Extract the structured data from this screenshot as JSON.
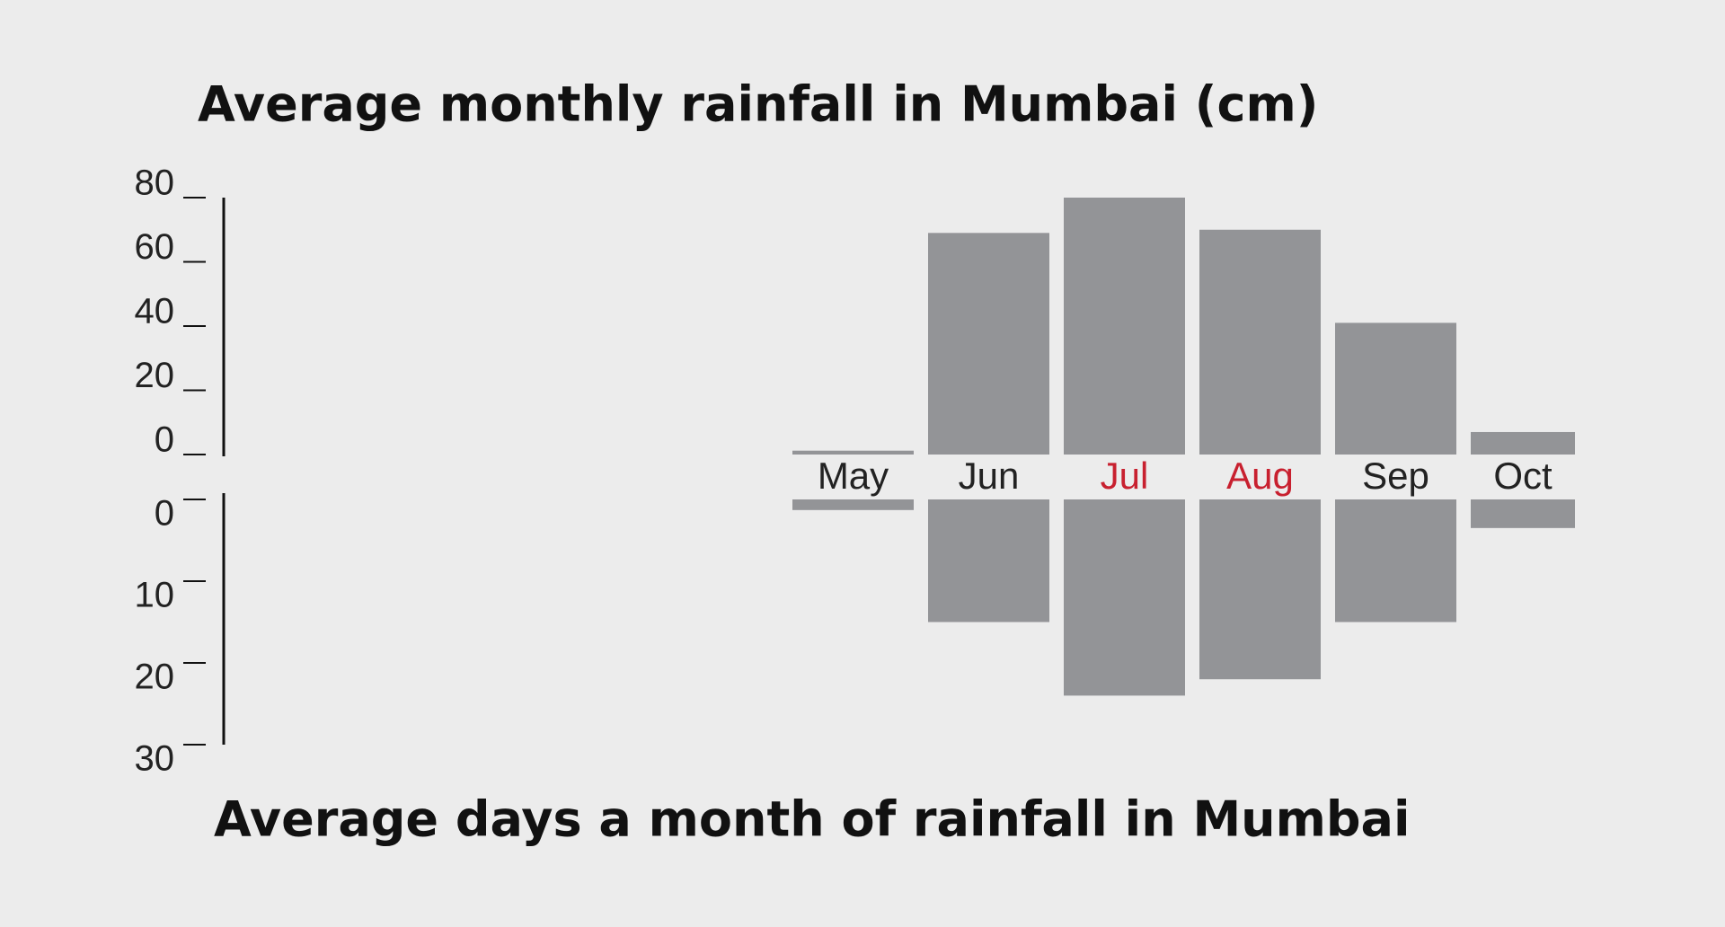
{
  "chart_data": [
    {
      "type": "bar",
      "title": "Average monthly rainfall in Mumbai (cm)",
      "categories": [
        "May",
        "Jun",
        "Jul",
        "Aug",
        "Sep",
        "Oct"
      ],
      "category_colors": [
        "#222222",
        "#222222",
        "#c8202f",
        "#c8202f",
        "#222222",
        "#222222"
      ],
      "values": [
        1.2,
        69,
        80,
        70,
        41,
        7
      ],
      "color": "#939497",
      "ylim": [
        0,
        80
      ],
      "yticks": [
        0,
        20,
        40,
        60,
        80
      ],
      "inverted": false
    },
    {
      "type": "bar",
      "title": "Average days a month of rainfall in Mumbai",
      "values": [
        1.3,
        15,
        24,
        22,
        15,
        3.5
      ],
      "color": "#939497",
      "ylim": [
        0,
        30
      ],
      "yticks": [
        0,
        10,
        20,
        30
      ],
      "inverted": true
    }
  ]
}
